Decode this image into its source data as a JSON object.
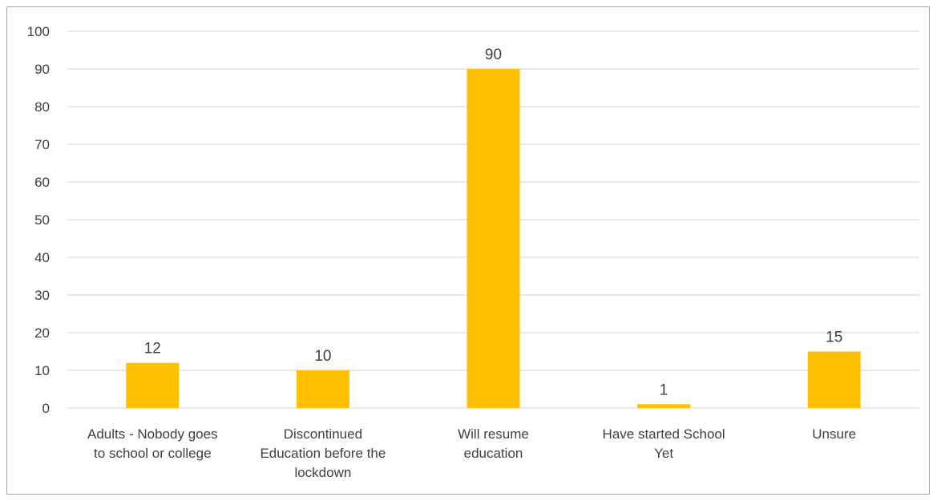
{
  "chart_data": {
    "type": "bar",
    "categories": [
      [
        "Adults - Nobody goes",
        "to school or college"
      ],
      [
        "Discontinued",
        "Education before the",
        "lockdown"
      ],
      [
        "Will resume",
        "education"
      ],
      [
        "Have started School",
        "Yet"
      ],
      [
        "Unsure"
      ]
    ],
    "values": [
      12,
      10,
      90,
      1,
      15
    ],
    "title": "",
    "xlabel": "",
    "ylabel": "",
    "ylim": [
      0,
      100
    ],
    "yticks": [
      0,
      10,
      20,
      30,
      40,
      50,
      60,
      70,
      80,
      90,
      100
    ],
    "grid": true,
    "legend": "none",
    "bar_color": "#ffc000",
    "grid_color": "#d9d9d9",
    "text_color": "#404040",
    "data_labels": true
  }
}
